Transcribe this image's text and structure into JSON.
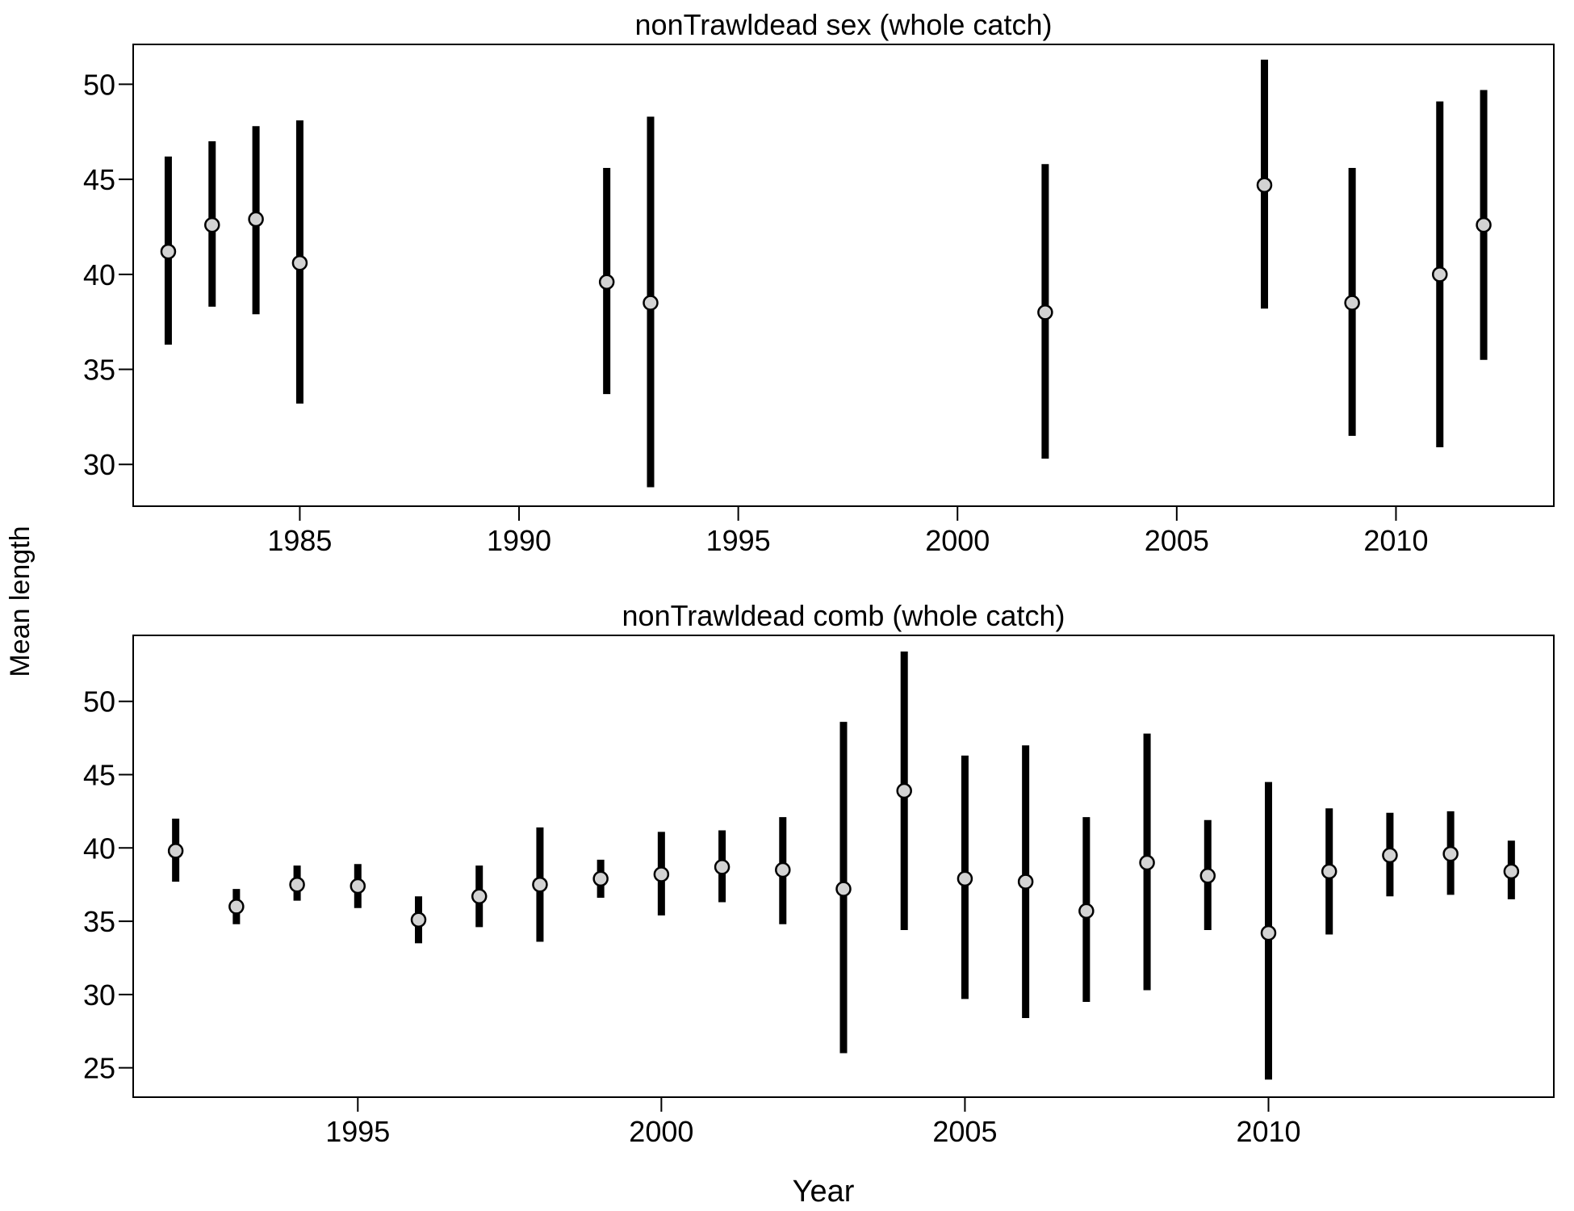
{
  "figure": {
    "ylabel": "Mean length",
    "xlabel": "Year"
  },
  "chart_data": [
    {
      "type": "scatter",
      "title": "nonTrawldead sex (whole catch)",
      "xlabel": "",
      "ylabel": "",
      "xlim": [
        1981.2,
        2013.6
      ],
      "ylim": [
        27.8,
        52.1
      ],
      "xticks": [
        1985,
        1990,
        1995,
        2000,
        2005,
        2010
      ],
      "yticks": [
        30,
        35,
        40,
        45,
        50
      ],
      "grid": false,
      "legend": "none",
      "point_fill": "#d3d3d3",
      "bar_color": "#000000",
      "x": [
        1982,
        1983,
        1984,
        1985,
        1992,
        1993,
        2002,
        2007,
        2009,
        2011,
        2012
      ],
      "y": [
        41.2,
        42.6,
        42.9,
        40.6,
        39.6,
        38.5,
        38.0,
        44.7,
        38.5,
        40.0,
        42.6
      ],
      "lower": [
        36.3,
        38.3,
        37.9,
        33.2,
        33.7,
        28.8,
        30.3,
        38.2,
        31.5,
        30.9,
        35.5
      ],
      "upper": [
        46.2,
        47.0,
        47.8,
        48.1,
        45.6,
        48.3,
        45.8,
        51.3,
        45.6,
        49.1,
        49.7
      ]
    },
    {
      "type": "scatter",
      "title": "nonTrawldead comb (whole catch)",
      "xlabel": "",
      "ylabel": "",
      "xlim": [
        1991.3,
        2014.7
      ],
      "ylim": [
        23.0,
        54.5
      ],
      "xticks": [
        1995,
        2000,
        2005,
        2010
      ],
      "yticks": [
        25,
        30,
        35,
        40,
        45,
        50
      ],
      "grid": false,
      "legend": "none",
      "point_fill": "#d3d3d3",
      "bar_color": "#000000",
      "x": [
        1992,
        1993,
        1994,
        1995,
        1996,
        1997,
        1998,
        1999,
        2000,
        2001,
        2002,
        2003,
        2004,
        2005,
        2006,
        2007,
        2008,
        2009,
        2010,
        2011,
        2012,
        2013,
        2014
      ],
      "y": [
        39.8,
        36.0,
        37.5,
        37.4,
        35.1,
        36.7,
        37.5,
        37.9,
        38.2,
        38.7,
        38.5,
        37.2,
        43.9,
        37.9,
        37.7,
        35.7,
        39.0,
        38.1,
        34.2,
        38.4,
        39.5,
        39.6,
        38.4
      ],
      "lower": [
        37.7,
        34.8,
        36.4,
        35.9,
        33.5,
        34.6,
        33.6,
        36.6,
        35.4,
        36.3,
        34.8,
        26.0,
        34.4,
        29.7,
        28.4,
        29.5,
        30.3,
        34.4,
        24.2,
        34.1,
        36.7,
        36.8,
        36.5
      ],
      "upper": [
        42.0,
        37.2,
        38.8,
        38.9,
        36.7,
        38.8,
        41.4,
        39.2,
        41.1,
        41.2,
        42.1,
        48.6,
        53.4,
        46.3,
        47.0,
        42.1,
        47.8,
        41.9,
        44.5,
        42.7,
        42.4,
        42.5,
        40.5
      ]
    }
  ]
}
